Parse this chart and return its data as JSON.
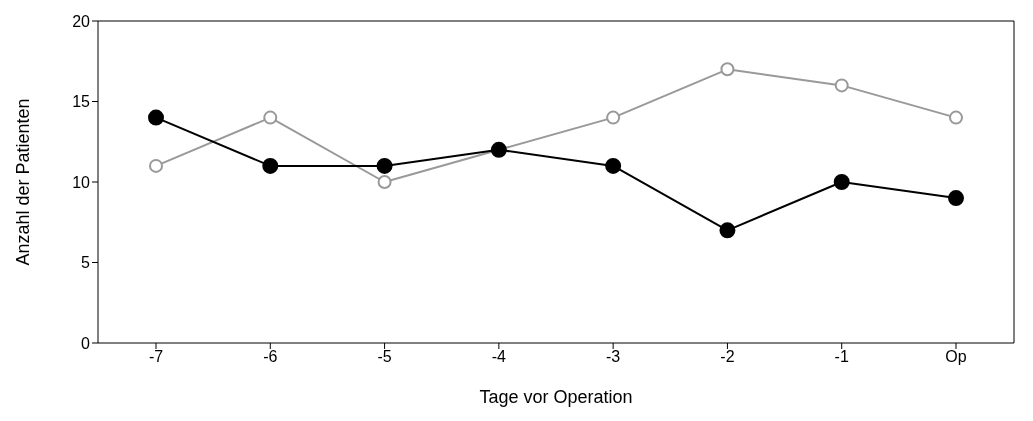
{
  "chart_data": {
    "type": "line",
    "xlabel": "Tage vor Operation",
    "ylabel": "Anzahl der Patienten",
    "categories": [
      "-7",
      "-6",
      "-5",
      "-4",
      "-3",
      "-2",
      "-1",
      "Op"
    ],
    "series": [
      {
        "color": "#000000",
        "values": [
          14,
          11,
          11,
          12,
          11,
          7,
          10,
          9
        ]
      },
      {
        "color": "#999999",
        "values": [
          11,
          14,
          10,
          12,
          14,
          17,
          16,
          14
        ]
      }
    ],
    "ylim": [
      0,
      20
    ],
    "yticks": [
      0,
      5,
      10,
      15,
      20
    ],
    "grid": false,
    "marker": "circle",
    "line_style": "solid"
  }
}
